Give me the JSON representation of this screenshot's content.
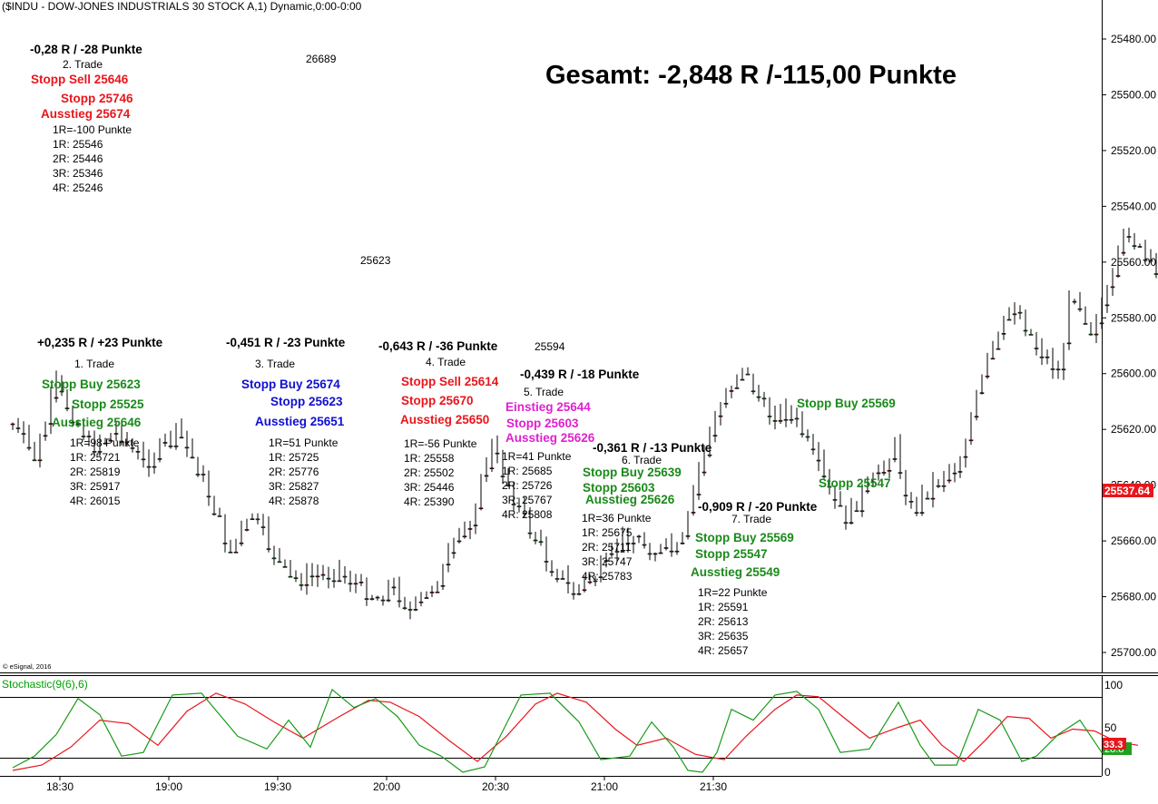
{
  "header": {
    "title": "($INDU - DOW-JONES INDUSTRIALS 30 STOCK A,1) Dynamic,0:00-0:00"
  },
  "total": "Gesamt: -2,848 R /-115,00 Punkte",
  "copyright": "© eSignal, 2016",
  "current_price": "25537.64",
  "stochastic": {
    "label": "Stochastic(9(6),6)",
    "levels": [
      "100",
      "50",
      "0"
    ],
    "k_value": "33.3",
    "d_value": "28.8"
  },
  "price_labels": {
    "high": "26689",
    "low1": "25623",
    "low2": "25594"
  },
  "annotations": [
    {
      "key": "t2_result",
      "text": "-0,28 R / -28 Punkte"
    },
    {
      "key": "t2_name",
      "text": "2. Trade"
    },
    {
      "key": "t2_stopp_sell",
      "text": "Stopp Sell 25646"
    },
    {
      "key": "t2_stopp",
      "text": "Stopp 25746"
    },
    {
      "key": "t2_exit",
      "text": "Ausstieg 25674"
    },
    {
      "key": "t2_r0",
      "text": "1R=-100 Punkte"
    },
    {
      "key": "t2_r1",
      "text": "1R: 25546"
    },
    {
      "key": "t2_r2",
      "text": "2R: 25446"
    },
    {
      "key": "t2_r3",
      "text": "3R: 25346"
    },
    {
      "key": "t2_r4",
      "text": "4R: 25246"
    },
    {
      "key": "t1_result",
      "text": "+0,235 R / +23 Punkte"
    },
    {
      "key": "t1_name",
      "text": "1. Trade"
    },
    {
      "key": "t1_stopp_buy",
      "text": "Stopp Buy 25623"
    },
    {
      "key": "t1_stopp",
      "text": "Stopp 25525"
    },
    {
      "key": "t1_exit",
      "text": "Ausstieg 25646"
    },
    {
      "key": "t1_r0",
      "text": "1R=98 Punkte"
    },
    {
      "key": "t1_r1",
      "text": "1R: 25721"
    },
    {
      "key": "t1_r2",
      "text": "2R: 25819"
    },
    {
      "key": "t1_r3",
      "text": "3R: 25917"
    },
    {
      "key": "t1_r4",
      "text": "4R: 26015"
    },
    {
      "key": "t3_result",
      "text": "-0,451 R / -23 Punkte"
    },
    {
      "key": "t3_name",
      "text": "3. Trade"
    },
    {
      "key": "t3_stopp_buy",
      "text": "Stopp Buy 25674"
    },
    {
      "key": "t3_stopp",
      "text": "Stopp 25623"
    },
    {
      "key": "t3_exit",
      "text": "Ausstieg 25651"
    },
    {
      "key": "t3_r0",
      "text": "1R=51 Punkte"
    },
    {
      "key": "t3_r1",
      "text": "1R: 25725"
    },
    {
      "key": "t3_r2",
      "text": "2R: 25776"
    },
    {
      "key": "t3_r3",
      "text": "3R: 25827"
    },
    {
      "key": "t3_r4",
      "text": "4R: 25878"
    },
    {
      "key": "t4_result",
      "text": "-0,643 R / -36 Punkte"
    },
    {
      "key": "t4_name",
      "text": "4. Trade"
    },
    {
      "key": "t4_stopp_sell",
      "text": "Stopp Sell 25614"
    },
    {
      "key": "t4_stopp",
      "text": "Stopp 25670"
    },
    {
      "key": "t4_exit",
      "text": "Ausstieg 25650"
    },
    {
      "key": "t4_r0",
      "text": "1R=-56 Punkte"
    },
    {
      "key": "t4_r1",
      "text": "1R: 25558"
    },
    {
      "key": "t4_r2",
      "text": "2R: 25502"
    },
    {
      "key": "t4_r3",
      "text": "3R: 25446"
    },
    {
      "key": "t4_r4",
      "text": "4R: 25390"
    },
    {
      "key": "t5_result",
      "text": "-0,439 R / -18 Punkte"
    },
    {
      "key": "t5_name",
      "text": "5. Trade"
    },
    {
      "key": "t5_entry",
      "text": "Einstieg 25644"
    },
    {
      "key": "t5_stopp",
      "text": "Stopp 25603"
    },
    {
      "key": "t5_exit",
      "text": "Ausstieg 25626"
    },
    {
      "key": "t5_r0",
      "text": "1R=41 Punkte"
    },
    {
      "key": "t5_r1",
      "text": "1R: 25685"
    },
    {
      "key": "t5_r2",
      "text": "2R: 25726"
    },
    {
      "key": "t5_r3",
      "text": "3R: 25767"
    },
    {
      "key": "t5_r4",
      "text": "4R: 25808"
    },
    {
      "key": "t6_result",
      "text": "-0,361 R / -13 Punkte"
    },
    {
      "key": "t6_name",
      "text": "6. Trade"
    },
    {
      "key": "t6_stopp_buy",
      "text": "Stopp Buy 25639"
    },
    {
      "key": "t6_stopp",
      "text": "Stopp 25603"
    },
    {
      "key": "t6_exit",
      "text": "Ausstieg 25626"
    },
    {
      "key": "t6_r0",
      "text": "1R=36 Punkte"
    },
    {
      "key": "t6_r1",
      "text": "1R: 25675"
    },
    {
      "key": "t6_r2",
      "text": "2R: 25711"
    },
    {
      "key": "t6_r3",
      "text": "3R: 25747"
    },
    {
      "key": "t6_r4",
      "text": "4R: 25783"
    },
    {
      "key": "t7_result",
      "text": "-0,909 R / -20 Punkte"
    },
    {
      "key": "t7_name",
      "text": "7. Trade"
    },
    {
      "key": "t7_stopp_buy",
      "text": "Stopp Buy 25569"
    },
    {
      "key": "t7_stopp",
      "text": "Stopp 25547"
    },
    {
      "key": "t7_exit",
      "text": "Ausstieg 25549"
    },
    {
      "key": "t7_r0",
      "text": "1R=22 Punkte"
    },
    {
      "key": "t7_r1",
      "text": "1R: 25591"
    },
    {
      "key": "t7_r2",
      "text": "2R: 25613"
    },
    {
      "key": "t7_r3",
      "text": "3R: 25635"
    },
    {
      "key": "t7_r4",
      "text": "4R: 25657"
    },
    {
      "key": "right_stopp_buy",
      "text": "Stopp Buy 25569"
    },
    {
      "key": "right_stopp",
      "text": "Stopp 25547"
    }
  ],
  "chart_data": {
    "type": "candlestick",
    "title": "($INDU - DOW-JONES INDUSTRIALS 30 STOCK A,1) Dynamic,0:00-0:00",
    "x_ticks": [
      "18:30",
      "19:00",
      "19:30",
      "20:00",
      "20:30",
      "21:00",
      "21:30"
    ],
    "y_ticks": [
      "25480.00",
      "25500.00",
      "25520.00",
      "25540.00",
      "25560.00",
      "25580.00",
      "25600.00",
      "25620.00",
      "25640.00",
      "25660.00",
      "25680.00",
      "25700.00"
    ],
    "ylim": [
      25474,
      25714
    ],
    "time_start": "18:17",
    "minutes": 213,
    "close_path": [
      [
        0,
        25618
      ],
      [
        6,
        25630
      ],
      [
        12,
        25605
      ],
      [
        22,
        25626
      ],
      [
        29,
        25620
      ],
      [
        36,
        25632
      ],
      [
        46,
        25622
      ],
      [
        52,
        25636
      ],
      [
        60,
        25664
      ],
      [
        66,
        25651
      ],
      [
        76,
        25674
      ],
      [
        90,
        25671
      ],
      [
        100,
        25680
      ],
      [
        105,
        25676
      ],
      [
        110,
        25686
      ],
      [
        116,
        25676
      ],
      [
        126,
        25652
      ],
      [
        132,
        25626
      ],
      [
        140,
        25650
      ],
      [
        148,
        25668
      ],
      [
        155,
        25679
      ],
      [
        162,
        25670
      ],
      [
        170,
        25657
      ],
      [
        178,
        25664
      ],
      [
        184,
        25663
      ],
      [
        190,
        25630
      ],
      [
        196,
        25607
      ],
      [
        201,
        25598
      ],
      [
        208,
        25614
      ],
      [
        214,
        25614
      ],
      [
        218,
        25622
      ],
      [
        223,
        25637
      ],
      [
        229,
        25652
      ],
      [
        235,
        25642
      ],
      [
        240,
        25632
      ],
      [
        243,
        25627
      ],
      [
        248,
        25650
      ],
      [
        252,
        25642
      ],
      [
        260,
        25633
      ],
      [
        268,
        25598
      ],
      [
        276,
        25574
      ],
      [
        282,
        25590
      ],
      [
        288,
        25599
      ],
      [
        292,
        25569
      ],
      [
        297,
        25584
      ],
      [
        303,
        25567
      ],
      [
        307,
        25547
      ],
      [
        311,
        25558
      ],
      [
        315,
        25565
      ],
      [
        320,
        25555
      ],
      [
        324,
        25543
      ],
      [
        328,
        25538
      ]
    ],
    "stochastic": {
      "k": [
        [
          0,
          5
        ],
        [
          6,
          18
        ],
        [
          12,
          42
        ],
        [
          18,
          82
        ],
        [
          24,
          64
        ],
        [
          30,
          18
        ],
        [
          36,
          22
        ],
        [
          44,
          86
        ],
        [
          52,
          88
        ],
        [
          62,
          40
        ],
        [
          70,
          26
        ],
        [
          76,
          58
        ],
        [
          82,
          28
        ],
        [
          88,
          92
        ],
        [
          94,
          72
        ],
        [
          100,
          82
        ],
        [
          106,
          62
        ],
        [
          112,
          30
        ],
        [
          118,
          18
        ],
        [
          124,
          0
        ],
        [
          130,
          6
        ],
        [
          140,
          86
        ],
        [
          148,
          88
        ],
        [
          156,
          56
        ],
        [
          162,
          14
        ],
        [
          170,
          18
        ],
        [
          176,
          56
        ],
        [
          182,
          28
        ],
        [
          186,
          2
        ],
        [
          190,
          0
        ],
        [
          194,
          22
        ],
        [
          198,
          70
        ],
        [
          204,
          58
        ],
        [
          210,
          86
        ],
        [
          216,
          90
        ],
        [
          222,
          70
        ],
        [
          228,
          22
        ],
        [
          236,
          26
        ],
        [
          244,
          78
        ],
        [
          250,
          30
        ],
        [
          254,
          8
        ],
        [
          260,
          8
        ],
        [
          266,
          70
        ],
        [
          272,
          58
        ],
        [
          278,
          12
        ],
        [
          282,
          18
        ],
        [
          288,
          42
        ],
        [
          294,
          58
        ],
        [
          300,
          22
        ],
        [
          306,
          30
        ]
      ],
      "d": [
        [
          0,
          2
        ],
        [
          8,
          8
        ],
        [
          16,
          28
        ],
        [
          24,
          58
        ],
        [
          32,
          54
        ],
        [
          40,
          30
        ],
        [
          48,
          68
        ],
        [
          56,
          88
        ],
        [
          64,
          76
        ],
        [
          72,
          56
        ],
        [
          80,
          38
        ],
        [
          90,
          62
        ],
        [
          98,
          80
        ],
        [
          104,
          78
        ],
        [
          112,
          62
        ],
        [
          120,
          36
        ],
        [
          128,
          12
        ],
        [
          136,
          40
        ],
        [
          144,
          76
        ],
        [
          150,
          88
        ],
        [
          158,
          78
        ],
        [
          166,
          48
        ],
        [
          172,
          30
        ],
        [
          180,
          38
        ],
        [
          188,
          20
        ],
        [
          196,
          14
        ],
        [
          202,
          40
        ],
        [
          210,
          70
        ],
        [
          216,
          86
        ],
        [
          222,
          84
        ],
        [
          228,
          64
        ],
        [
          236,
          38
        ],
        [
          244,
          50
        ],
        [
          250,
          58
        ],
        [
          256,
          30
        ],
        [
          262,
          12
        ],
        [
          268,
          36
        ],
        [
          274,
          62
        ],
        [
          280,
          60
        ],
        [
          286,
          38
        ],
        [
          292,
          48
        ],
        [
          298,
          46
        ],
        [
          304,
          34
        ],
        [
          310,
          30
        ]
      ]
    }
  }
}
